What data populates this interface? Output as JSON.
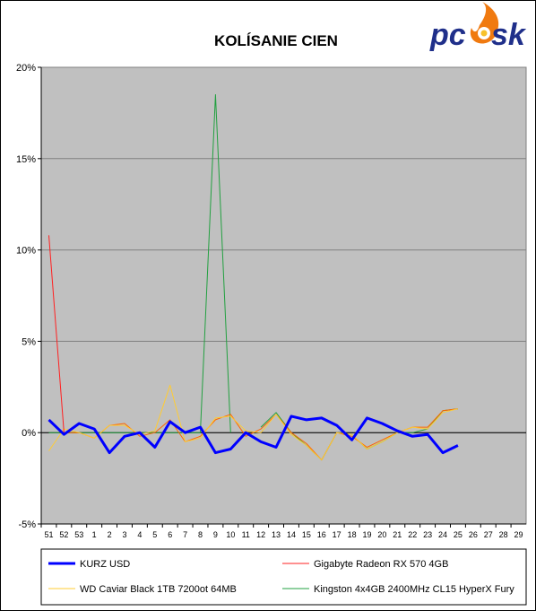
{
  "logo": {
    "text_left": "pc",
    "text_right": "sk",
    "flame_color": "#f07a10"
  },
  "chart_data": {
    "type": "line",
    "title": "KOLÍSANIE CIEN",
    "xlabel": "",
    "ylabel": "",
    "plot_background": "#c0c0c0",
    "grid": true,
    "legend_position": "bottom",
    "ylim": [
      -5,
      20
    ],
    "y_ticks": [
      "-5%",
      "0%",
      "5%",
      "10%",
      "15%",
      "20%"
    ],
    "categories": [
      "51",
      "52",
      "53",
      "1",
      "2",
      "3",
      "4",
      "5",
      "6",
      "7",
      "8",
      "9",
      "10",
      "11",
      "12",
      "13",
      "14",
      "15",
      "16",
      "17",
      "18",
      "19",
      "20",
      "21",
      "22",
      "23",
      "24",
      "25",
      "26",
      "27",
      "28",
      "29"
    ],
    "series": [
      {
        "name": "KURZ USD",
        "color": "#0000ff",
        "width": 3,
        "values": [
          0.7,
          -0.1,
          0.5,
          0.2,
          -1.1,
          -0.2,
          0.0,
          -0.8,
          0.6,
          0.0,
          0.3,
          -1.1,
          -0.9,
          0.0,
          -0.5,
          -0.8,
          0.9,
          0.7,
          0.8,
          0.4,
          -0.4,
          0.8,
          0.5,
          0.1,
          -0.2,
          -0.1,
          -1.1,
          -0.7,
          null,
          null,
          null,
          null
        ]
      },
      {
        "name": "Gigabyte Radeon RX 570 4GB",
        "color": "#ff2020",
        "width": 1,
        "values": [
          10.8,
          0.0,
          null,
          null,
          null,
          null,
          null,
          null,
          null,
          null,
          null,
          null,
          null,
          null,
          null,
          null,
          null,
          null,
          null,
          null,
          null,
          null,
          null,
          null,
          null,
          null,
          null,
          null,
          null,
          null,
          null,
          null
        ]
      },
      {
        "name": "WD Caviar Black 1TB 7200ot 64MB",
        "color": "#ffcc33",
        "width": 1,
        "values": [
          -1.0,
          0.2,
          0.0,
          -0.3,
          0.4,
          0.4,
          -0.1,
          0.1,
          2.6,
          -0.5,
          -0.3,
          0.8,
          0.9,
          0.1,
          0.0,
          1.0,
          -0.1,
          -0.7,
          -1.5,
          0.0,
          -0.1,
          -0.9,
          -0.5,
          0.0,
          0.3,
          0.2,
          1.1,
          1.3,
          null,
          null,
          null,
          null
        ]
      },
      {
        "name": "Gigabyte Radeon RX 570 4GB (segment 2)",
        "hide_in_legend": true,
        "color": "#ff6600",
        "width": 1,
        "values": [
          null,
          0.0,
          0.0,
          -0.3,
          0.4,
          0.5,
          -0.2,
          0.0,
          0.7,
          -0.5,
          -0.2,
          0.7,
          1.0,
          -0.2,
          0.2,
          1.0,
          0.0,
          -0.6,
          -1.5,
          0.0,
          -0.2,
          -0.8,
          -0.4,
          0.0,
          0.3,
          0.3,
          1.2,
          1.3,
          null,
          null,
          null,
          null
        ]
      },
      {
        "name": "Kingston 4x4GB 2400MHz CL15 HyperX Fury",
        "color": "#22a040",
        "width": 1,
        "values": [
          0.0,
          0.0,
          0.0,
          0.0,
          0.0,
          0.0,
          0.0,
          0.0,
          0.0,
          0.0,
          0.0,
          18.5,
          0.0,
          null,
          0.3,
          1.1,
          0.0,
          -0.7,
          -1.5,
          0.0,
          -0.1,
          -0.9,
          -0.5,
          0.0,
          0.0,
          0.2,
          1.2,
          1.3,
          null,
          null,
          null,
          null
        ]
      }
    ],
    "legend": [
      {
        "label": "KURZ USD",
        "color": "#0000ff",
        "width": 3
      },
      {
        "label": "Gigabyte Radeon RX 570 4GB",
        "color": "#ff2020",
        "width": 1
      },
      {
        "label": "WD Caviar Black 1TB 7200ot 64MB",
        "color": "#ffcc33",
        "width": 1
      },
      {
        "label": "Kingston 4x4GB 2400MHz CL15 HyperX Fury",
        "color": "#22a040",
        "width": 1
      }
    ]
  }
}
